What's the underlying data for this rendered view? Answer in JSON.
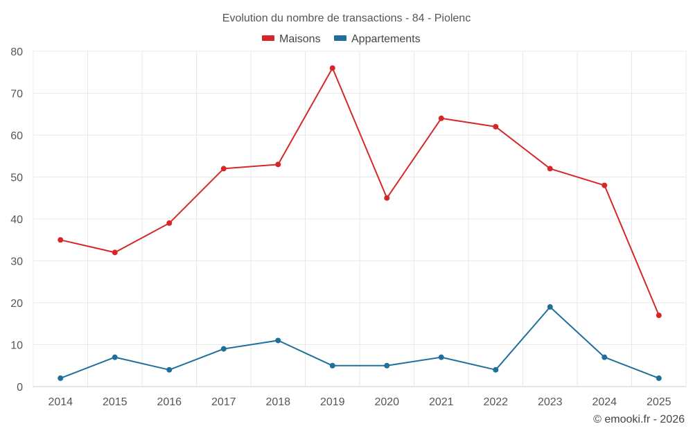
{
  "chart_data": {
    "type": "line",
    "title": "Evolution du nombre de transactions - 84 - Piolenc",
    "xlabel": "",
    "ylabel": "",
    "categories": [
      "2014",
      "2015",
      "2016",
      "2017",
      "2018",
      "2019",
      "2020",
      "2021",
      "2022",
      "2023",
      "2024",
      "2025"
    ],
    "ylim": [
      0,
      80
    ],
    "yticks": [
      0,
      10,
      20,
      30,
      40,
      50,
      60,
      70,
      80
    ],
    "grid": true,
    "legend_position": "top-center",
    "series": [
      {
        "name": "Maisons",
        "color": "#d62728",
        "values": [
          35,
          32,
          39,
          52,
          53,
          76,
          45,
          64,
          62,
          52,
          48,
          17
        ]
      },
      {
        "name": "Appartements",
        "color": "#1f6e9c",
        "values": [
          2,
          7,
          4,
          9,
          11,
          5,
          5,
          7,
          4,
          19,
          7,
          2
        ]
      }
    ]
  },
  "credit": "© emooki.fr - 2026"
}
